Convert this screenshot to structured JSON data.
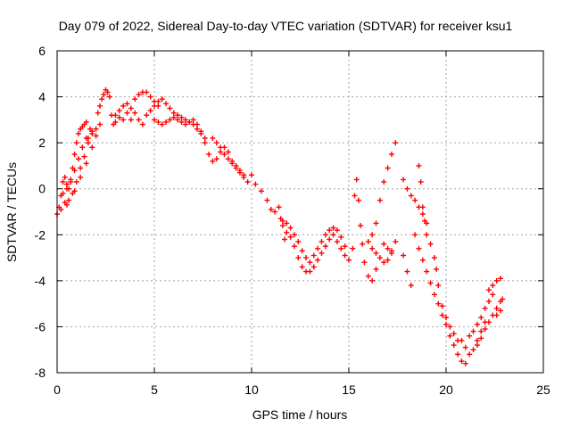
{
  "chart_data": {
    "type": "scatter",
    "title": "Day 079 of 2022, Sidereal Day-to-day VTEC variation (SDTVAR) for receiver ksu1",
    "xlabel": "GPS time / hours",
    "ylabel": "SDTVAR / TECUs",
    "xlim": [
      0,
      25
    ],
    "ylim": [
      -8,
      6
    ],
    "xticks": [
      0,
      5,
      10,
      15,
      20,
      25
    ],
    "yticks": [
      -8,
      -6,
      -4,
      -2,
      0,
      2,
      4,
      6
    ],
    "grid": true,
    "marker": "+",
    "series": [
      {
        "name": "ksu1",
        "color": "#ff0000",
        "points": [
          [
            0.0,
            -1.1
          ],
          [
            0.1,
            -0.8
          ],
          [
            0.2,
            -0.3
          ],
          [
            0.3,
            0.3
          ],
          [
            0.4,
            0.5
          ],
          [
            0.5,
            0.2
          ],
          [
            0.6,
            0.0
          ],
          [
            0.7,
            0.4
          ],
          [
            0.8,
            0.9
          ],
          [
            0.9,
            1.5
          ],
          [
            1.0,
            2.0
          ],
          [
            1.1,
            2.4
          ],
          [
            1.2,
            2.6
          ],
          [
            1.3,
            2.7
          ],
          [
            1.4,
            2.8
          ],
          [
            1.5,
            2.9
          ],
          [
            0.4,
            -0.6
          ],
          [
            0.6,
            -0.5
          ],
          [
            0.8,
            -0.2
          ],
          [
            1.0,
            0.3
          ],
          [
            1.2,
            0.9
          ],
          [
            1.4,
            1.4
          ],
          [
            1.6,
            2.0
          ],
          [
            1.8,
            2.4
          ],
          [
            0.3,
            -0.2
          ],
          [
            0.5,
            0.0
          ],
          [
            0.7,
            0.3
          ],
          [
            0.9,
            0.8
          ],
          [
            1.1,
            1.3
          ],
          [
            1.3,
            1.8
          ],
          [
            1.5,
            2.2
          ],
          [
            1.7,
            2.6
          ],
          [
            0.2,
            -0.9
          ],
          [
            0.5,
            -0.7
          ],
          [
            0.9,
            -0.1
          ],
          [
            1.2,
            0.5
          ],
          [
            1.5,
            1.1
          ],
          [
            1.8,
            1.8
          ],
          [
            2.0,
            2.3
          ],
          [
            2.2,
            2.8
          ],
          [
            1.6,
            2.2
          ],
          [
            1.8,
            2.5
          ],
          [
            2.0,
            2.6
          ],
          [
            2.1,
            3.3
          ],
          [
            2.2,
            3.6
          ],
          [
            2.3,
            3.9
          ],
          [
            2.4,
            4.1
          ],
          [
            2.5,
            4.3
          ],
          [
            2.6,
            4.2
          ],
          [
            2.7,
            4.0
          ],
          [
            2.8,
            3.2
          ],
          [
            2.9,
            2.8
          ],
          [
            3.0,
            2.9
          ],
          [
            3.2,
            3.1
          ],
          [
            3.4,
            3.0
          ],
          [
            3.6,
            3.3
          ],
          [
            3.0,
            3.2
          ],
          [
            3.2,
            3.4
          ],
          [
            3.4,
            3.6
          ],
          [
            3.6,
            3.7
          ],
          [
            3.8,
            3.5
          ],
          [
            4.0,
            3.3
          ],
          [
            4.2,
            3.0
          ],
          [
            4.4,
            2.8
          ],
          [
            3.8,
            3.0
          ],
          [
            4.0,
            3.9
          ],
          [
            4.2,
            4.1
          ],
          [
            4.4,
            4.2
          ],
          [
            4.6,
            4.2
          ],
          [
            4.8,
            4.0
          ],
          [
            5.0,
            3.8
          ],
          [
            5.2,
            3.6
          ],
          [
            4.6,
            3.2
          ],
          [
            4.8,
            3.4
          ],
          [
            5.0,
            3.6
          ],
          [
            5.2,
            3.8
          ],
          [
            5.4,
            3.9
          ],
          [
            5.6,
            3.7
          ],
          [
            5.8,
            3.5
          ],
          [
            6.0,
            3.3
          ],
          [
            5.0,
            3.0
          ],
          [
            5.2,
            2.9
          ],
          [
            5.4,
            2.8
          ],
          [
            5.6,
            2.9
          ],
          [
            5.8,
            3.0
          ],
          [
            6.0,
            3.1
          ],
          [
            6.2,
            3.0
          ],
          [
            6.4,
            2.9
          ],
          [
            6.2,
            3.2
          ],
          [
            6.4,
            3.1
          ],
          [
            6.6,
            3.0
          ],
          [
            6.8,
            2.9
          ],
          [
            7.0,
            2.8
          ],
          [
            7.2,
            2.6
          ],
          [
            7.4,
            2.4
          ],
          [
            7.6,
            2.2
          ],
          [
            6.6,
            2.8
          ],
          [
            6.8,
            2.9
          ],
          [
            7.0,
            3.0
          ],
          [
            7.2,
            2.8
          ],
          [
            7.4,
            2.5
          ],
          [
            7.6,
            2.0
          ],
          [
            7.8,
            1.5
          ],
          [
            8.0,
            1.2
          ],
          [
            8.2,
            1.3
          ],
          [
            8.4,
            1.6
          ],
          [
            8.6,
            1.8
          ],
          [
            8.8,
            1.6
          ],
          [
            9.0,
            1.2
          ],
          [
            9.2,
            0.9
          ],
          [
            9.4,
            0.7
          ],
          [
            9.6,
            0.6
          ],
          [
            8.0,
            2.2
          ],
          [
            8.2,
            2.0
          ],
          [
            8.4,
            1.8
          ],
          [
            8.6,
            1.5
          ],
          [
            8.8,
            1.3
          ],
          [
            9.0,
            1.1
          ],
          [
            9.2,
            1.0
          ],
          [
            9.4,
            0.8
          ],
          [
            9.6,
            0.5
          ],
          [
            9.8,
            0.3
          ],
          [
            10.0,
            0.6
          ],
          [
            10.2,
            0.2
          ],
          [
            10.5,
            -0.1
          ],
          [
            10.8,
            -0.5
          ],
          [
            11.0,
            -0.9
          ],
          [
            11.2,
            -1.0
          ],
          [
            11.4,
            -0.8
          ],
          [
            11.5,
            -1.3
          ],
          [
            11.6,
            -1.6
          ],
          [
            11.7,
            -2.2
          ],
          [
            11.8,
            -1.9
          ],
          [
            12.0,
            -1.7
          ],
          [
            11.6,
            -1.4
          ],
          [
            11.8,
            -1.5
          ],
          [
            12.0,
            -2.1
          ],
          [
            12.2,
            -2.5
          ],
          [
            12.4,
            -3.0
          ],
          [
            12.6,
            -3.4
          ],
          [
            12.8,
            -3.6
          ],
          [
            13.0,
            -3.6
          ],
          [
            13.2,
            -3.4
          ],
          [
            13.4,
            -3.1
          ],
          [
            13.6,
            -2.8
          ],
          [
            13.8,
            -2.5
          ],
          [
            14.0,
            -2.2
          ],
          [
            14.2,
            -2.0
          ],
          [
            12.2,
            -2.0
          ],
          [
            12.4,
            -2.3
          ],
          [
            12.6,
            -2.7
          ],
          [
            12.8,
            -3.0
          ],
          [
            13.0,
            -3.2
          ],
          [
            13.2,
            -2.9
          ],
          [
            13.4,
            -2.6
          ],
          [
            13.6,
            -2.3
          ],
          [
            13.8,
            -2.0
          ],
          [
            14.0,
            -1.8
          ],
          [
            14.2,
            -1.7
          ],
          [
            14.4,
            -1.8
          ],
          [
            14.6,
            -2.1
          ],
          [
            14.8,
            -2.5
          ],
          [
            14.4,
            -2.3
          ],
          [
            14.6,
            -2.6
          ],
          [
            14.8,
            -2.9
          ],
          [
            15.0,
            -3.1
          ],
          [
            15.2,
            -2.6
          ],
          [
            15.3,
            -0.3
          ],
          [
            15.4,
            0.4
          ],
          [
            15.5,
            -0.5
          ],
          [
            15.6,
            -1.6
          ],
          [
            15.7,
            -2.4
          ],
          [
            15.8,
            -3.2
          ],
          [
            16.0,
            -3.8
          ],
          [
            16.2,
            -4.0
          ],
          [
            16.4,
            -3.5
          ],
          [
            16.2,
            -2.0
          ],
          [
            16.4,
            -1.5
          ],
          [
            16.6,
            -0.5
          ],
          [
            16.8,
            0.3
          ],
          [
            17.0,
            0.9
          ],
          [
            17.2,
            1.5
          ],
          [
            17.4,
            2.0
          ],
          [
            16.0,
            -2.3
          ],
          [
            16.2,
            -2.6
          ],
          [
            16.4,
            -2.8
          ],
          [
            16.6,
            -3.0
          ],
          [
            16.8,
            -3.2
          ],
          [
            17.0,
            -3.1
          ],
          [
            17.2,
            -2.8
          ],
          [
            16.8,
            -2.4
          ],
          [
            17.0,
            -2.6
          ],
          [
            17.2,
            -2.7
          ],
          [
            17.4,
            -2.3
          ],
          [
            17.8,
            -2.9
          ],
          [
            18.0,
            -3.6
          ],
          [
            18.2,
            -4.2
          ],
          [
            17.8,
            0.4
          ],
          [
            18.0,
            0.0
          ],
          [
            18.2,
            -0.3
          ],
          [
            18.4,
            -0.5
          ],
          [
            18.6,
            -0.8
          ],
          [
            18.8,
            -1.1
          ],
          [
            19.0,
            -1.5
          ],
          [
            18.6,
            1.0
          ],
          [
            18.7,
            0.3
          ],
          [
            18.8,
            -0.8
          ],
          [
            18.9,
            -1.4
          ],
          [
            19.0,
            -2.0
          ],
          [
            19.2,
            -2.4
          ],
          [
            19.4,
            -3.0
          ],
          [
            18.4,
            -2.0
          ],
          [
            18.6,
            -2.6
          ],
          [
            18.8,
            -3.1
          ],
          [
            19.0,
            -3.6
          ],
          [
            19.2,
            -4.1
          ],
          [
            19.4,
            -4.6
          ],
          [
            19.6,
            -5.0
          ],
          [
            19.5,
            -3.5
          ],
          [
            19.6,
            -4.2
          ],
          [
            19.8,
            -5.1
          ],
          [
            20.0,
            -5.6
          ],
          [
            20.2,
            -6.0
          ],
          [
            20.4,
            -6.3
          ],
          [
            20.6,
            -6.6
          ],
          [
            19.8,
            -5.5
          ],
          [
            20.0,
            -5.9
          ],
          [
            20.2,
            -6.4
          ],
          [
            20.4,
            -6.8
          ],
          [
            20.6,
            -7.2
          ],
          [
            20.8,
            -7.5
          ],
          [
            21.0,
            -7.6
          ],
          [
            20.8,
            -6.6
          ],
          [
            21.0,
            -6.9
          ],
          [
            21.2,
            -7.2
          ],
          [
            21.4,
            -7.0
          ],
          [
            21.6,
            -6.6
          ],
          [
            21.8,
            -6.2
          ],
          [
            22.0,
            -5.8
          ],
          [
            21.2,
            -6.4
          ],
          [
            21.4,
            -6.2
          ],
          [
            21.6,
            -5.9
          ],
          [
            21.8,
            -5.6
          ],
          [
            22.0,
            -5.2
          ],
          [
            22.2,
            -4.9
          ],
          [
            22.4,
            -4.6
          ],
          [
            21.6,
            -6.8
          ],
          [
            21.8,
            -6.5
          ],
          [
            22.0,
            -6.1
          ],
          [
            22.2,
            -5.8
          ],
          [
            22.4,
            -5.5
          ],
          [
            22.6,
            -5.2
          ],
          [
            22.8,
            -4.9
          ],
          [
            22.2,
            -4.4
          ],
          [
            22.4,
            -4.2
          ],
          [
            22.6,
            -4.0
          ],
          [
            22.8,
            -3.9
          ],
          [
            22.6,
            -5.5
          ],
          [
            22.8,
            -5.3
          ],
          [
            22.9,
            -4.8
          ]
        ]
      }
    ]
  }
}
